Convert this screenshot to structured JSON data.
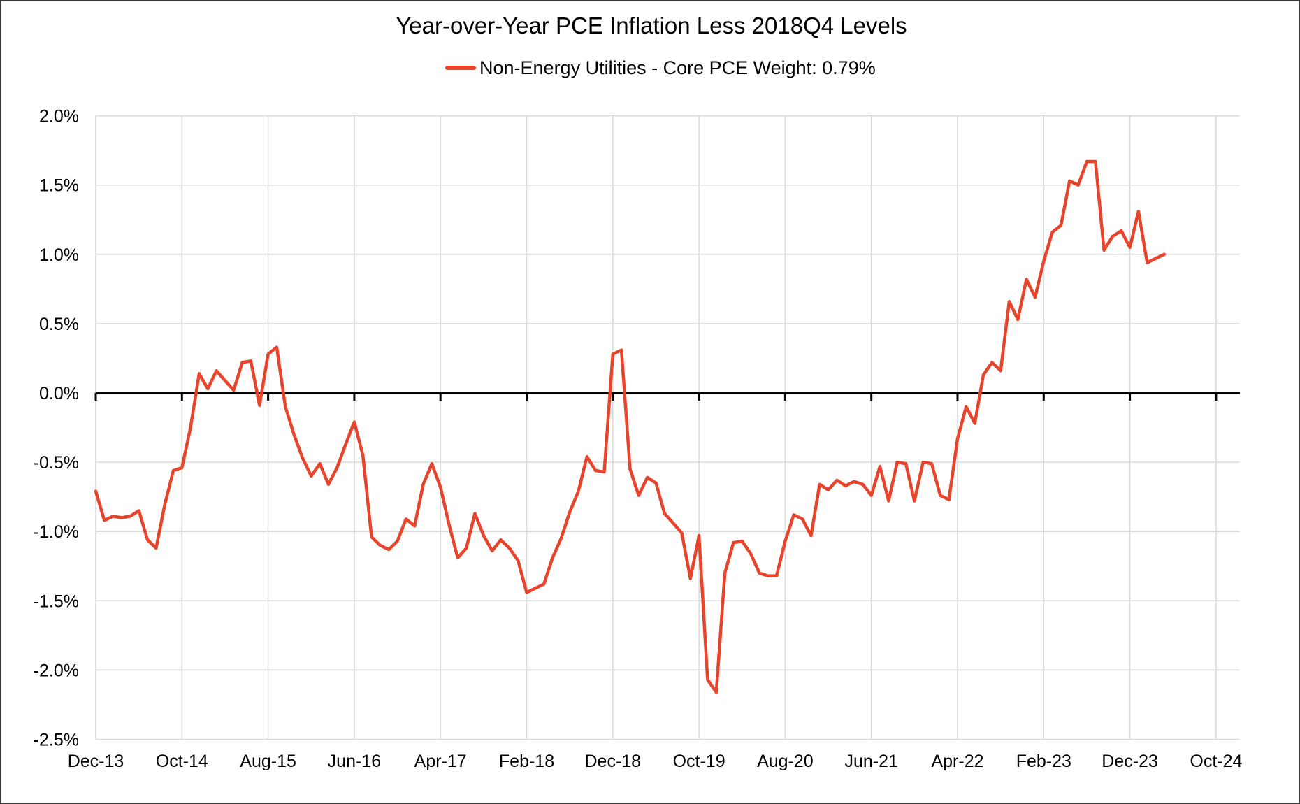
{
  "title": "Year-over-Year PCE Inflation Less 2018Q4 Levels",
  "legend": {
    "label": "Non-Energy Utilities - Core PCE Weight: 0.79%",
    "position": "top-center"
  },
  "colors": {
    "series": "#E8432B",
    "grid": "#D9D9D9",
    "axis": "#000000",
    "text": "#000000",
    "background": "#FFFFFF",
    "frame": "#3C3C3C"
  },
  "chart_data": {
    "type": "line",
    "title": "Year-over-Year PCE Inflation Less 2018Q4 Levels",
    "grid": true,
    "legend_position": "top-center",
    "x_unit": "month",
    "ylim": [
      -2.5,
      2.0
    ],
    "y_ticks": [
      2.0,
      1.5,
      1.0,
      0.5,
      0.0,
      -0.5,
      -1.0,
      -1.5,
      -2.0,
      -2.5
    ],
    "y_tick_labels": [
      "2.0%",
      "1.5%",
      "1.0%",
      "0.5%",
      "0.0%",
      "-0.5%",
      "-1.0%",
      "-1.5%",
      "-2.0%",
      "-2.5%"
    ],
    "x_tick_labels": [
      "Dec-13",
      "Oct-14",
      "Aug-15",
      "Jun-16",
      "Apr-17",
      "Feb-18",
      "Dec-18",
      "Oct-19",
      "Aug-20",
      "Jun-21",
      "Apr-22",
      "Feb-23",
      "Dec-23",
      "Oct-24"
    ],
    "x_tick_positions": [
      0,
      10,
      20,
      30,
      40,
      50,
      60,
      70,
      80,
      90,
      100,
      110,
      120,
      130
    ],
    "zero_line": true,
    "x": [
      "Dec-13",
      "Jan-14",
      "Feb-14",
      "Mar-14",
      "Apr-14",
      "May-14",
      "Jun-14",
      "Jul-14",
      "Aug-14",
      "Sep-14",
      "Oct-14",
      "Nov-14",
      "Dec-14",
      "Jan-15",
      "Feb-15",
      "Mar-15",
      "Apr-15",
      "May-15",
      "Jun-15",
      "Jul-15",
      "Aug-15",
      "Sep-15",
      "Oct-15",
      "Nov-15",
      "Dec-15",
      "Jan-16",
      "Feb-16",
      "Mar-16",
      "Apr-16",
      "May-16",
      "Jun-16",
      "Jul-16",
      "Aug-16",
      "Sep-16",
      "Oct-16",
      "Nov-16",
      "Dec-16",
      "Jan-17",
      "Feb-17",
      "Mar-17",
      "Apr-17",
      "May-17",
      "Jun-17",
      "Jul-17",
      "Aug-17",
      "Sep-17",
      "Oct-17",
      "Nov-17",
      "Dec-17",
      "Jan-18",
      "Feb-18",
      "Mar-18",
      "Apr-18",
      "May-18",
      "Jun-18",
      "Jul-18",
      "Aug-18",
      "Sep-18",
      "Oct-18",
      "Nov-18",
      "Dec-18",
      "Jan-19",
      "Feb-19",
      "Mar-19",
      "Apr-19",
      "May-19",
      "Jun-19",
      "Jul-19",
      "Aug-19",
      "Sep-19",
      "Oct-19",
      "Nov-19",
      "Dec-19",
      "Jan-20",
      "Feb-20",
      "Mar-20",
      "Apr-20",
      "May-20",
      "Jun-20",
      "Jul-20",
      "Aug-20",
      "Sep-20",
      "Oct-20",
      "Nov-20",
      "Dec-20",
      "Jan-21",
      "Feb-21",
      "Mar-21",
      "Apr-21",
      "May-21",
      "Jun-21",
      "Jul-21",
      "Aug-21",
      "Sep-21",
      "Oct-21",
      "Nov-21",
      "Dec-21",
      "Jan-22",
      "Feb-22",
      "Mar-22",
      "Apr-22",
      "May-22",
      "Jun-22",
      "Jul-22",
      "Aug-22",
      "Sep-22",
      "Oct-22",
      "Nov-22",
      "Dec-22",
      "Jan-23",
      "Feb-23",
      "Mar-23",
      "Apr-23",
      "May-23",
      "Jun-23",
      "Jul-23",
      "Aug-23",
      "Sep-23",
      "Oct-23",
      "Nov-23",
      "Dec-23",
      "Jan-24",
      "Feb-24",
      "Mar-24",
      "Apr-24"
    ],
    "series": [
      {
        "name": "Non-Energy Utilities - Core PCE Weight: 0.79%",
        "color": "#E8432B",
        "values": [
          -0.71,
          -0.92,
          -0.89,
          -0.9,
          -0.89,
          -0.85,
          -1.06,
          -1.12,
          -0.81,
          -0.56,
          -0.54,
          -0.25,
          0.14,
          0.03,
          0.16,
          0.09,
          0.02,
          0.22,
          0.23,
          -0.09,
          0.28,
          0.33,
          -0.1,
          -0.3,
          -0.47,
          -0.6,
          -0.51,
          -0.66,
          -0.54,
          -0.37,
          -0.21,
          -0.45,
          -1.04,
          -1.1,
          -1.13,
          -1.07,
          -0.91,
          -0.96,
          -0.66,
          -0.51,
          -0.68,
          -0.95,
          -1.19,
          -1.12,
          -0.87,
          -1.03,
          -1.14,
          -1.06,
          -1.12,
          -1.21,
          -1.44,
          -1.41,
          -1.38,
          -1.19,
          -1.05,
          -0.86,
          -0.71,
          -0.46,
          -0.56,
          -0.57,
          0.28,
          0.31,
          -0.55,
          -0.74,
          -0.61,
          -0.65,
          -0.87,
          -0.94,
          -1.01,
          -1.34,
          -1.03,
          -2.07,
          -2.16,
          -1.3,
          -1.08,
          -1.07,
          -1.16,
          -1.3,
          -1.32,
          -1.32,
          -1.07,
          -0.88,
          -0.91,
          -1.03,
          -0.66,
          -0.7,
          -0.63,
          -0.67,
          -0.64,
          -0.66,
          -0.74,
          -0.53,
          -0.78,
          -0.5,
          -0.51,
          -0.78,
          -0.5,
          -0.51,
          -0.74,
          -0.77,
          -0.33,
          -0.1,
          -0.22,
          0.13,
          0.22,
          0.16,
          0.66,
          0.53,
          0.82,
          0.69,
          0.95,
          1.16,
          1.21,
          1.53,
          1.5,
          1.67,
          1.67,
          1.03,
          1.13,
          1.17,
          1.05,
          1.31,
          0.94,
          0.97,
          1.0
        ]
      }
    ]
  }
}
